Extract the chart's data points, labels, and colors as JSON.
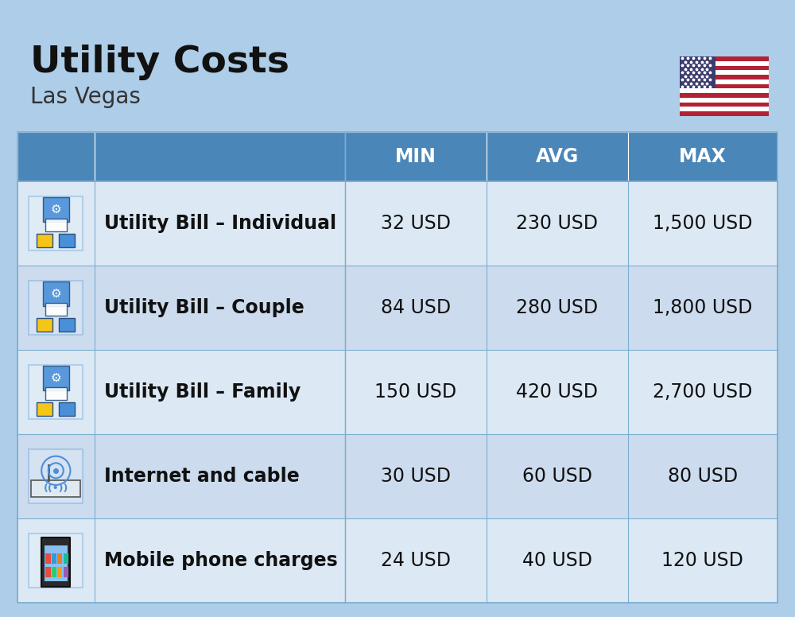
{
  "title": "Utility Costs",
  "subtitle": "Las Vegas",
  "background_color": "#aecde8",
  "header_bg_color": "#4a86b8",
  "header_text_color": "#ffffff",
  "row_bg_odd": "#dce9f5",
  "row_bg_even": "#ccdcee",
  "border_color": "#7aaed0",
  "col_headers": [
    "MIN",
    "AVG",
    "MAX"
  ],
  "rows": [
    {
      "label": "Utility Bill – Individual",
      "min": "32 USD",
      "avg": "230 USD",
      "max": "1,500 USD"
    },
    {
      "label": "Utility Bill – Couple",
      "min": "84 USD",
      "avg": "280 USD",
      "max": "1,800 USD"
    },
    {
      "label": "Utility Bill – Family",
      "min": "150 USD",
      "avg": "420 USD",
      "max": "2,700 USD"
    },
    {
      "label": "Internet and cable",
      "min": "30 USD",
      "avg": "60 USD",
      "max": "80 USD"
    },
    {
      "label": "Mobile phone charges",
      "min": "24 USD",
      "avg": "40 USD",
      "max": "120 USD"
    }
  ],
  "title_fontsize": 34,
  "subtitle_fontsize": 20,
  "header_fontsize": 17,
  "cell_fontsize": 17,
  "label_fontsize": 17
}
